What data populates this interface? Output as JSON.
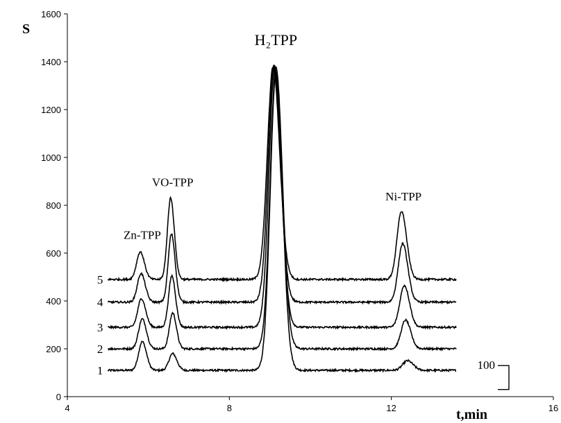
{
  "chart_data": {
    "type": "line",
    "title": "",
    "xlabel": "t,min",
    "ylabel": "S",
    "xlim": [
      4,
      16
    ],
    "ylim": [
      0,
      1600
    ],
    "x_ticks": [
      4,
      8,
      12,
      16
    ],
    "y_ticks": [
      0,
      200,
      400,
      600,
      800,
      1000,
      1200,
      1400,
      1600
    ],
    "grid": false,
    "x_range": [
      5,
      13.6
    ],
    "series": [
      {
        "name": "1",
        "baseline": 110,
        "peaks": [
          {
            "t": 5.85,
            "height": 120,
            "width": 0.09
          },
          {
            "t": 6.6,
            "height": 70,
            "width": 0.09
          },
          {
            "t": 9.15,
            "height": 1240,
            "width": 0.14
          },
          {
            "t": 12.4,
            "height": 40,
            "width": 0.12
          }
        ]
      },
      {
        "name": "2",
        "baseline": 200,
        "peaks": [
          {
            "t": 5.85,
            "height": 125,
            "width": 0.09
          },
          {
            "t": 6.6,
            "height": 150,
            "width": 0.08
          },
          {
            "t": 9.15,
            "height": 1180,
            "width": 0.14
          },
          {
            "t": 12.35,
            "height": 120,
            "width": 0.11
          }
        ]
      },
      {
        "name": "3",
        "baseline": 290,
        "peaks": [
          {
            "t": 5.83,
            "height": 120,
            "width": 0.09
          },
          {
            "t": 6.58,
            "height": 215,
            "width": 0.08
          },
          {
            "t": 9.12,
            "height": 1090,
            "width": 0.14
          },
          {
            "t": 12.32,
            "height": 175,
            "width": 0.11
          }
        ]
      },
      {
        "name": "4",
        "baseline": 395,
        "peaks": [
          {
            "t": 5.82,
            "height": 120,
            "width": 0.09
          },
          {
            "t": 6.57,
            "height": 285,
            "width": 0.08
          },
          {
            "t": 9.1,
            "height": 990,
            "width": 0.14
          },
          {
            "t": 12.28,
            "height": 245,
            "width": 0.11
          }
        ]
      },
      {
        "name": "5",
        "baseline": 490,
        "peaks": [
          {
            "t": 5.8,
            "height": 115,
            "width": 0.09
          },
          {
            "t": 6.55,
            "height": 340,
            "width": 0.08
          },
          {
            "t": 9.08,
            "height": 890,
            "width": 0.14
          },
          {
            "t": 12.25,
            "height": 285,
            "width": 0.11
          }
        ]
      }
    ],
    "annotations": [
      {
        "text": "Zn-TPP",
        "x": 5.85,
        "y": 660
      },
      {
        "text": "VO-TPP",
        "x": 6.6,
        "y": 880
      },
      {
        "text": "H₂TPP",
        "x": 9.15,
        "y": 1470
      },
      {
        "text": "Ni-TPP",
        "x": 12.3,
        "y": 820
      }
    ],
    "scale_bar": {
      "label": "100",
      "value": 100
    }
  }
}
